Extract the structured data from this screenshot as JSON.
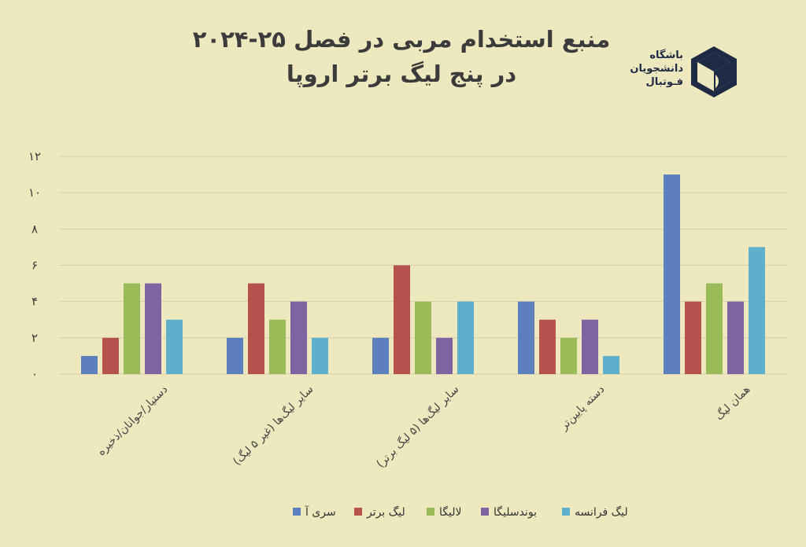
{
  "title": {
    "line1": "منبع استخدام مربی در فصل ۲۵-۲۰۲۴",
    "line2": "در پنج لیگ برتر اروپا"
  },
  "logo": {
    "line1": "باشگاه",
    "line2": "دانشجویان",
    "line3": "فـوتبال"
  },
  "chart_data": {
    "type": "bar",
    "categories": [
      "دستیار/جوانان/ذخیره",
      "سایر لیگ‌ها (غیر ۵ لیگ)",
      "سایر لیگ‌ها (۵ لیگ برتر)",
      "دسته پایین‌تر",
      "همان لیگ"
    ],
    "series": [
      {
        "name": "سری آ",
        "color": "#5B80BD",
        "values": [
          1,
          2,
          2,
          4,
          11
        ]
      },
      {
        "name": "لیگ برتر",
        "color": "#B5524D",
        "values": [
          2,
          5,
          6,
          3,
          4
        ]
      },
      {
        "name": "لالیگا",
        "color": "#9BBB59",
        "values": [
          5,
          3,
          4,
          2,
          5
        ]
      },
      {
        "name": "بوندسلیگا",
        "color": "#8064A2",
        "values": [
          5,
          4,
          2,
          3,
          4
        ]
      },
      {
        "name": "لیگ فرانسه",
        "color": "#5DAFCC",
        "values": [
          3,
          2,
          4,
          1,
          7
        ]
      }
    ],
    "ylim": [
      0,
      12
    ],
    "yticks": [
      {
        "value": 0,
        "label": "۰"
      },
      {
        "value": 2,
        "label": "۲"
      },
      {
        "value": 4,
        "label": "۴"
      },
      {
        "value": 6,
        "label": "۶"
      },
      {
        "value": 8,
        "label": "۸"
      },
      {
        "value": 10,
        "label": "۱۰"
      },
      {
        "value": 12,
        "label": "۱۲"
      }
    ],
    "grid": true,
    "legend": "bottom",
    "gridColor": "#D3CFB0"
  }
}
